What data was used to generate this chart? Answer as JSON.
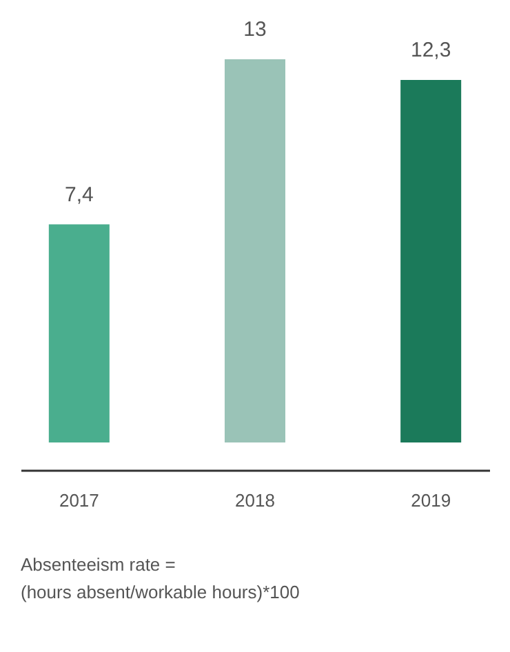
{
  "chart_data": {
    "type": "bar",
    "categories": [
      "2017",
      "2018",
      "2019"
    ],
    "values": [
      7.4,
      13,
      12.3
    ],
    "colors": [
      "#4aae8e",
      "#9ac3b7",
      "#1b7a5a"
    ],
    "value_labels": [
      "7,4",
      "13",
      "12,3"
    ],
    "annotations": [
      "Absenteeism rate =",
      "(hours absent/workable hours)*100"
    ]
  }
}
